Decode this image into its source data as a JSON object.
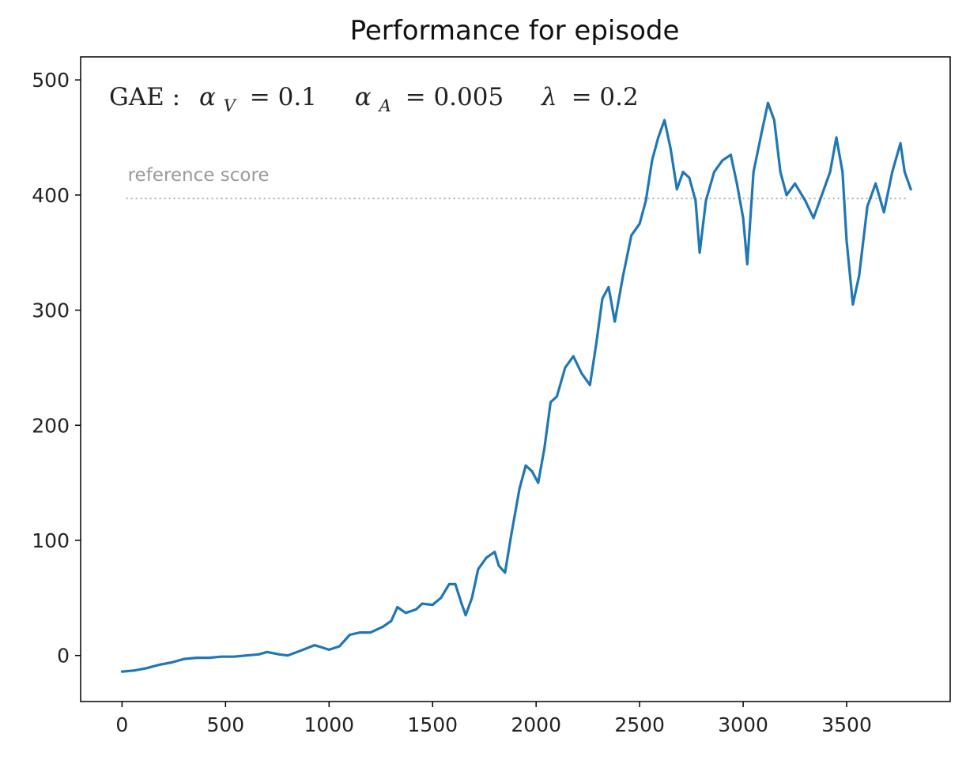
{
  "chart_data": {
    "type": "line",
    "title": "Performance for episode",
    "xlabel": "",
    "ylabel": "",
    "xlim": [
      -200,
      4000
    ],
    "ylim": [
      -40,
      520
    ],
    "x_ticks": [
      0,
      500,
      1000,
      1500,
      2000,
      2500,
      3000,
      3500
    ],
    "y_ticks": [
      0,
      100,
      200,
      300,
      400,
      500
    ],
    "x_tick_labels": [
      "0",
      "500",
      "1000",
      "1500",
      "2000",
      "2500",
      "3000",
      "3500"
    ],
    "y_tick_labels": [
      "0",
      "100",
      "200",
      "300",
      "400",
      "500"
    ],
    "grid": false,
    "annotation": {
      "prefix": "GAE :",
      "alpha_v_symbol": "α",
      "alpha_v_sub": "V",
      "alpha_v_value": "= 0.1",
      "alpha_a_symbol": "α",
      "alpha_a_sub": "A",
      "alpha_a_value": "= 0.005",
      "lambda_symbol": "λ",
      "lambda_value": "= 0.2"
    },
    "reference": {
      "label": "reference score",
      "y": 397,
      "x_start": 20,
      "x_end": 3800,
      "color": "#b0b0b0"
    },
    "series": [
      {
        "color": "#1f77b4",
        "points": [
          [
            0,
            -14
          ],
          [
            60,
            -13
          ],
          [
            120,
            -11
          ],
          [
            180,
            -8
          ],
          [
            240,
            -6
          ],
          [
            300,
            -3
          ],
          [
            360,
            -2
          ],
          [
            420,
            -2
          ],
          [
            480,
            -1
          ],
          [
            540,
            -1
          ],
          [
            600,
            0
          ],
          [
            660,
            1
          ],
          [
            700,
            3
          ],
          [
            760,
            1
          ],
          [
            800,
            0
          ],
          [
            860,
            4
          ],
          [
            930,
            9
          ],
          [
            1000,
            5
          ],
          [
            1050,
            8
          ],
          [
            1100,
            18
          ],
          [
            1150,
            20
          ],
          [
            1200,
            20
          ],
          [
            1260,
            25
          ],
          [
            1300,
            30
          ],
          [
            1330,
            42
          ],
          [
            1370,
            37
          ],
          [
            1420,
            40
          ],
          [
            1450,
            45
          ],
          [
            1500,
            44
          ],
          [
            1540,
            50
          ],
          [
            1580,
            62
          ],
          [
            1610,
            62
          ],
          [
            1640,
            45
          ],
          [
            1660,
            35
          ],
          [
            1690,
            50
          ],
          [
            1720,
            75
          ],
          [
            1760,
            85
          ],
          [
            1800,
            90
          ],
          [
            1820,
            78
          ],
          [
            1850,
            72
          ],
          [
            1880,
            105
          ],
          [
            1920,
            145
          ],
          [
            1950,
            165
          ],
          [
            1980,
            160
          ],
          [
            2010,
            150
          ],
          [
            2040,
            180
          ],
          [
            2070,
            220
          ],
          [
            2100,
            225
          ],
          [
            2140,
            250
          ],
          [
            2180,
            260
          ],
          [
            2220,
            245
          ],
          [
            2260,
            235
          ],
          [
            2290,
            270
          ],
          [
            2320,
            310
          ],
          [
            2350,
            320
          ],
          [
            2380,
            290
          ],
          [
            2420,
            330
          ],
          [
            2460,
            365
          ],
          [
            2500,
            375
          ],
          [
            2530,
            395
          ],
          [
            2560,
            430
          ],
          [
            2590,
            450
          ],
          [
            2620,
            465
          ],
          [
            2650,
            440
          ],
          [
            2680,
            405
          ],
          [
            2710,
            420
          ],
          [
            2740,
            415
          ],
          [
            2770,
            395
          ],
          [
            2790,
            350
          ],
          [
            2820,
            395
          ],
          [
            2860,
            420
          ],
          [
            2900,
            430
          ],
          [
            2940,
            435
          ],
          [
            2970,
            410
          ],
          [
            3000,
            380
          ],
          [
            3020,
            340
          ],
          [
            3050,
            420
          ],
          [
            3090,
            455
          ],
          [
            3120,
            480
          ],
          [
            3150,
            465
          ],
          [
            3180,
            420
          ],
          [
            3210,
            400
          ],
          [
            3250,
            410
          ],
          [
            3300,
            395
          ],
          [
            3340,
            380
          ],
          [
            3380,
            400
          ],
          [
            3420,
            420
          ],
          [
            3450,
            450
          ],
          [
            3480,
            420
          ],
          [
            3500,
            360
          ],
          [
            3530,
            305
          ],
          [
            3560,
            330
          ],
          [
            3600,
            390
          ],
          [
            3640,
            410
          ],
          [
            3680,
            385
          ],
          [
            3720,
            420
          ],
          [
            3760,
            445
          ],
          [
            3780,
            420
          ],
          [
            3810,
            405
          ]
        ]
      }
    ]
  }
}
